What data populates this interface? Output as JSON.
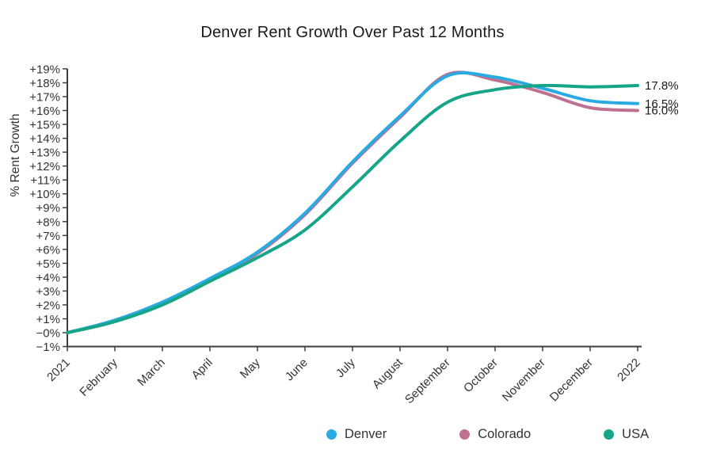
{
  "chart_data": {
    "type": "line",
    "title": "Denver Rent Growth Over Past 12 Months",
    "ylabel": "% Rent Growth",
    "xlabel": "",
    "x_categories": [
      "2021",
      "February",
      "March",
      "April",
      "May",
      "June",
      "July",
      "August",
      "September",
      "October",
      "November",
      "December",
      "2022"
    ],
    "ylim": [
      -1,
      19
    ],
    "y_ticks": [
      "+19%",
      "+18%",
      "+17%",
      "+16%",
      "+15%",
      "+14%",
      "+13%",
      "+12%",
      "+11%",
      "+10%",
      "+9%",
      "+8%",
      "+7%",
      "+6%",
      "+5%",
      "+4%",
      "+3%",
      "+2%",
      "+1%",
      "−0%",
      "−1%"
    ],
    "grid": false,
    "legend_position": "bottom",
    "axis_color": "#3d3d3d",
    "text_color": "#333333",
    "series": [
      {
        "name": "Denver",
        "color": "#29abe2",
        "end_label": "16.5%",
        "values": [
          0.0,
          0.9,
          2.2,
          3.9,
          5.8,
          8.6,
          12.3,
          15.6,
          18.5,
          18.4,
          17.6,
          16.7,
          16.5
        ]
      },
      {
        "name": "Colorado",
        "color": "#bf7191",
        "end_label": "16.0%",
        "values": [
          0.0,
          0.8,
          2.1,
          3.8,
          5.7,
          8.5,
          12.2,
          15.5,
          18.6,
          18.2,
          17.3,
          16.2,
          16.0
        ]
      },
      {
        "name": "USA",
        "color": "#17a589",
        "end_label": "17.8%",
        "values": [
          0.0,
          0.8,
          2.0,
          3.7,
          5.4,
          7.4,
          10.5,
          13.8,
          16.6,
          17.5,
          17.8,
          17.7,
          17.8
        ]
      }
    ]
  }
}
